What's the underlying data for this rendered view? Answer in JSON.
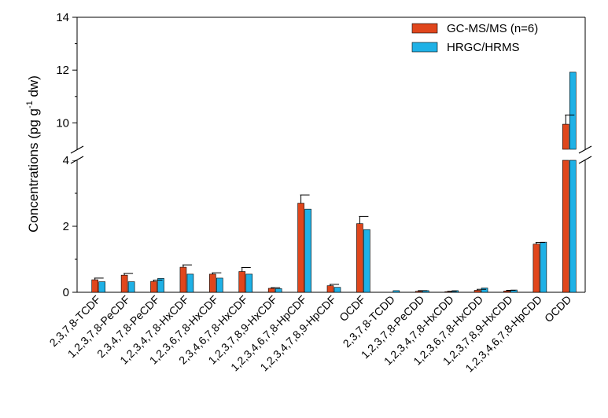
{
  "chart_data": {
    "type": "bar",
    "title": "",
    "ylabel": {
      "main": "Concentrations (pg g",
      "sup": "-1",
      "tail": " dw)"
    },
    "y_break": {
      "lower_range": [
        0,
        4
      ],
      "upper_range": [
        9,
        14
      ]
    },
    "yticks_lower": [
      "0",
      "2",
      "4"
    ],
    "yticks_upper": [
      "10",
      "12",
      "14"
    ],
    "categories": [
      "2,3,7,8-TCDF",
      "1,2,3,7,8-PeCDF",
      "2,3,4,7,8-PeCDF",
      "1,2,3,4,7,8-HxCDF",
      "1,2,3,6,7,8-HxCDF",
      "2,3,4,6,7,8-HxCDF",
      "1,2,3,7,8,9-HxCDF",
      "1,2,3,4,6,7,8-HpCDF",
      "1,2,3,4,7,8,9-HpCDF",
      "OCDF",
      "2,3,7,8-TCDD",
      "1,2,3,7,8-PeCDD",
      "1,2,3,4,7,8-HxCDD",
      "1,2,3,6,7,8-HxCDD",
      "1,2,3,7,8,9-HxCDD",
      "1,2,3,4,6,7,8-HpCDD",
      "OCDD"
    ],
    "series": [
      {
        "name": "GC-MS/MS (n=6)",
        "color": "#e0461c",
        "values": [
          0.38,
          0.52,
          0.33,
          0.76,
          0.55,
          0.63,
          0.12,
          2.7,
          0.2,
          2.08,
          0.0,
          0.03,
          0.02,
          0.06,
          0.04,
          1.46,
          9.95
        ],
        "errors": [
          0.05,
          0.05,
          0.04,
          0.07,
          0.04,
          0.12,
          0.02,
          0.25,
          0.04,
          0.22,
          0.0,
          0.02,
          0.01,
          0.03,
          0.02,
          0.05,
          0.35
        ]
      },
      {
        "name": "HRGC/HRMS",
        "color": "#1fb1e6",
        "values": [
          0.32,
          0.32,
          0.42,
          0.55,
          0.43,
          0.55,
          0.11,
          2.52,
          0.15,
          1.9,
          0.05,
          0.05,
          0.05,
          0.13,
          0.07,
          1.52,
          11.92
        ]
      }
    ]
  }
}
